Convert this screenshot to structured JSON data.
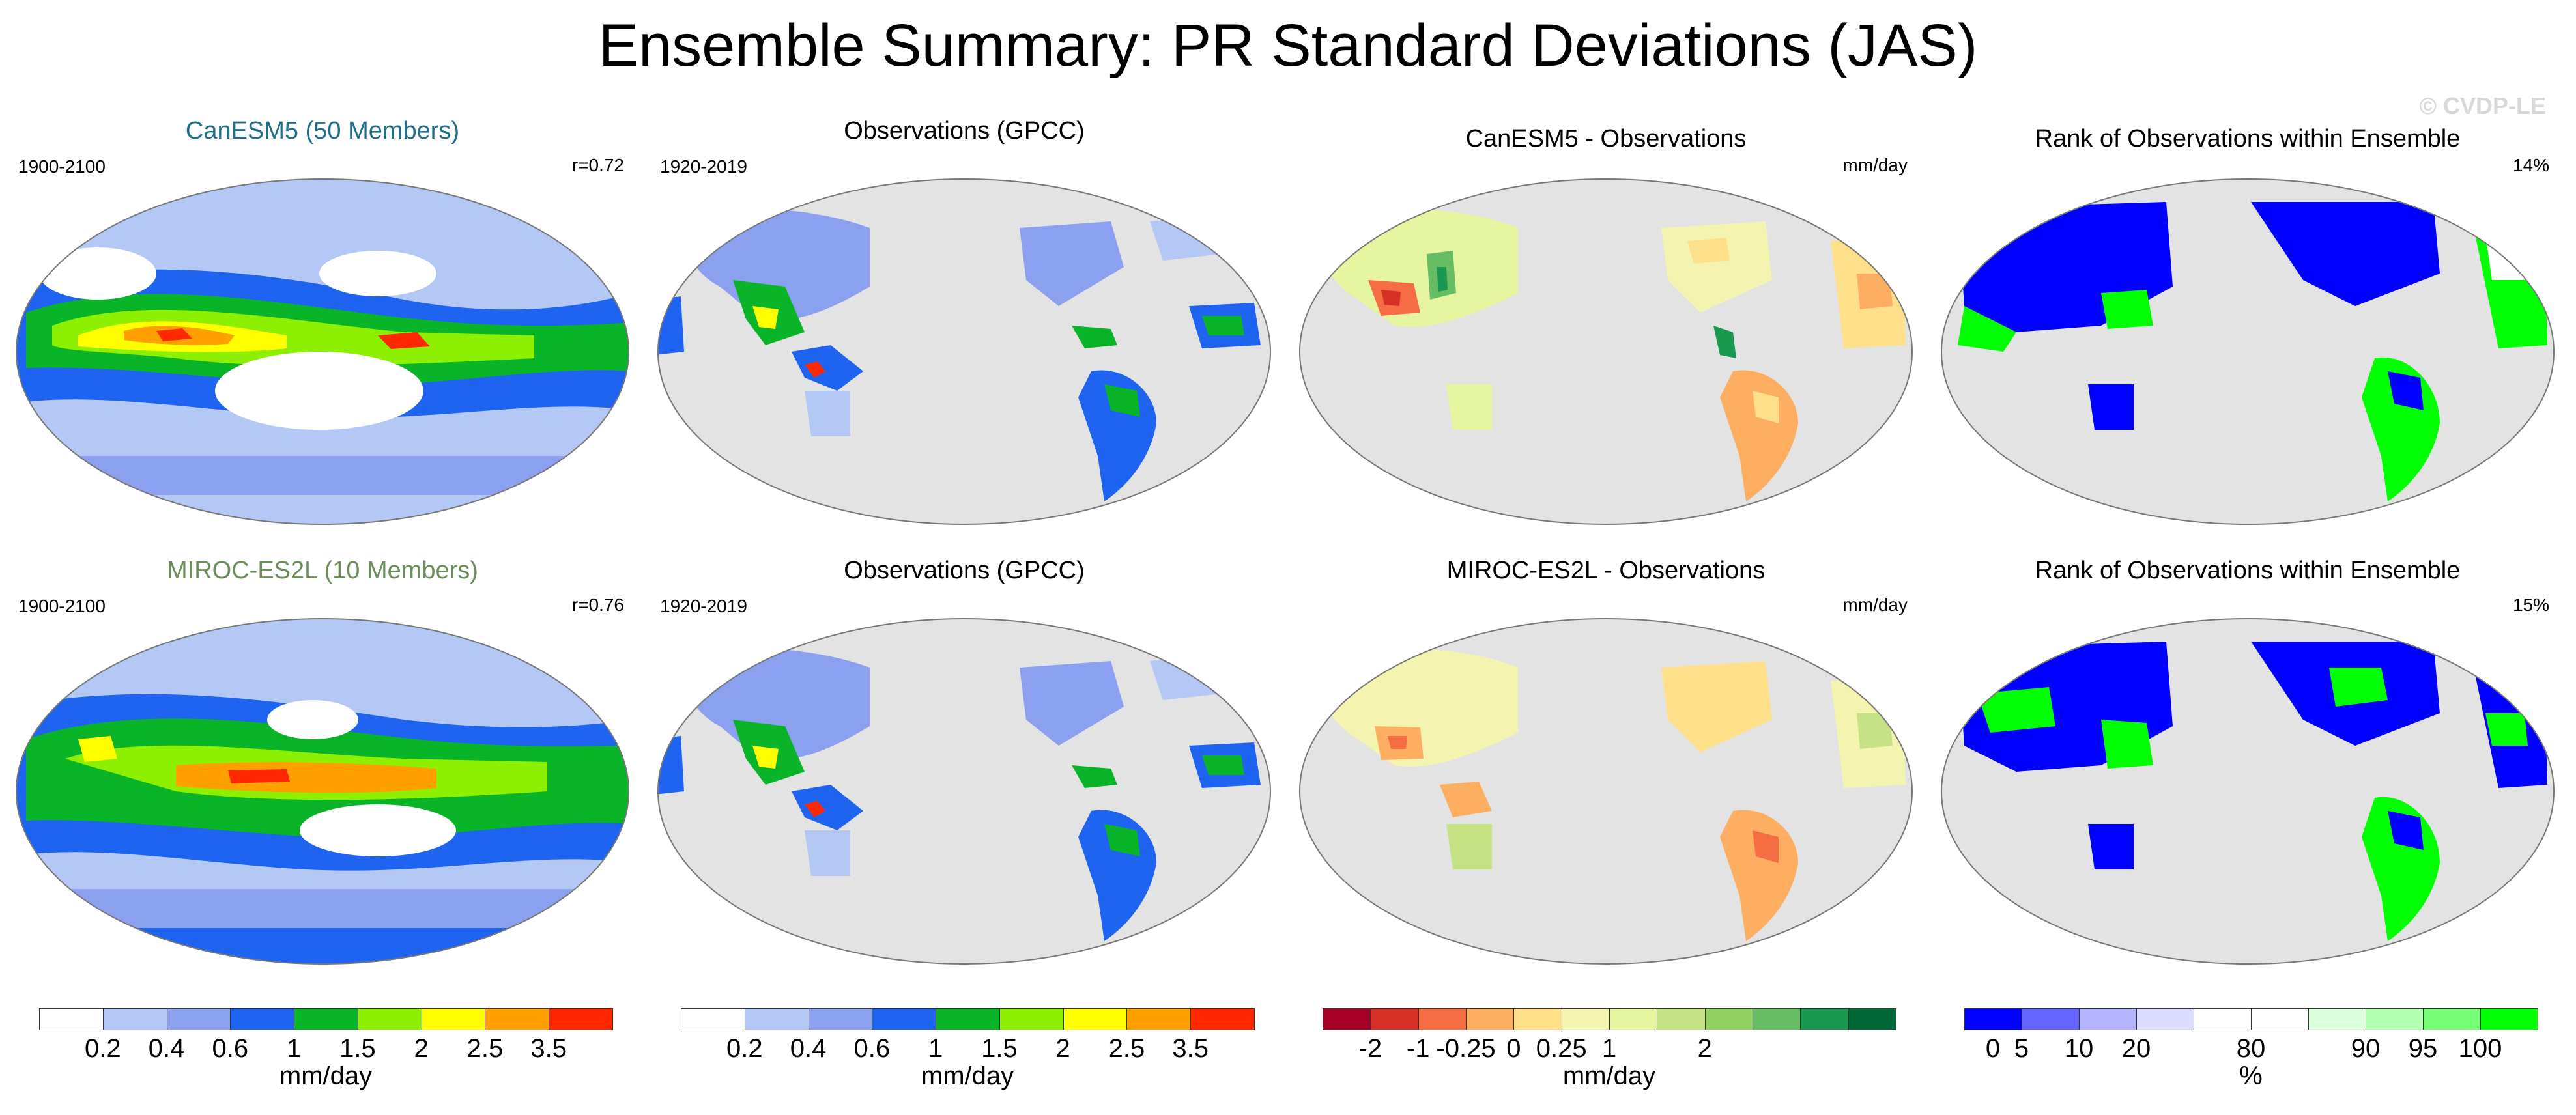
{
  "title": "Ensemble Summary: PR Standard Deviations (JAS)",
  "watermark": "© CVDP-LE",
  "panels": [
    {
      "title": "CanESM5 (50 Members)",
      "title_color": "#1f6f8b",
      "left_label": "1900-2100",
      "right_label": "r=0.72",
      "kind": "model"
    },
    {
      "title": "Observations (GPCC)",
      "title_color": "#000000",
      "left_label": "1920-2019",
      "right_label": "",
      "kind": "obs"
    },
    {
      "title": "CanESM5 - Observations",
      "title_color": "#000000",
      "left_label": "",
      "right_label": "mm/day",
      "kind": "diff"
    },
    {
      "title": "Rank of Observations within Ensemble",
      "title_color": "#000000",
      "left_label": "",
      "right_label": "14%",
      "kind": "rank"
    },
    {
      "title": "MIROC-ES2L (10 Members)",
      "title_color": "#6b8e5a",
      "left_label": "1900-2100",
      "right_label": "r=0.76",
      "kind": "model"
    },
    {
      "title": "Observations (GPCC)",
      "title_color": "#000000",
      "left_label": "1920-2019",
      "right_label": "",
      "kind": "obs"
    },
    {
      "title": "MIROC-ES2L - Observations",
      "title_color": "#000000",
      "left_label": "",
      "right_label": "mm/day",
      "kind": "diff"
    },
    {
      "title": "Rank of Observations within Ensemble",
      "title_color": "#000000",
      "left_label": "",
      "right_label": "15%",
      "kind": "rank"
    }
  ],
  "colorbars": [
    {
      "unit": "mm/day",
      "colors": [
        "#ffffff",
        "#b4c8f5",
        "#8ca0f0",
        "#1e64f0",
        "#0ab428",
        "#8cf000",
        "#ffff00",
        "#ffa000",
        "#ff2800"
      ],
      "labels": [
        "0.2",
        "0.4",
        "0.6",
        "1",
        "1.5",
        "2",
        "2.5",
        "3.5"
      ]
    },
    {
      "unit": "mm/day",
      "colors": [
        "#ffffff",
        "#b4c8f5",
        "#8ca0f0",
        "#1e64f0",
        "#0ab428",
        "#8cf000",
        "#ffff00",
        "#ffa000",
        "#ff2800"
      ],
      "labels": [
        "0.2",
        "0.4",
        "0.6",
        "1",
        "1.5",
        "2",
        "2.5",
        "3.5"
      ]
    },
    {
      "unit": "mm/day",
      "colors": [
        "#a50026",
        "#d73027",
        "#f46d43",
        "#fdae61",
        "#fee08b",
        "#f4f3b0",
        "#e6f5a0",
        "#c5e384",
        "#91cf60",
        "#66bd63",
        "#1a9850",
        "#006837"
      ],
      "labels": [
        "-2",
        "-1",
        "-0.25",
        "0",
        "0.25",
        "1",
        "2"
      ],
      "label_slots": [
        1,
        2,
        3,
        4,
        5,
        6,
        8
      ]
    },
    {
      "unit": "%",
      "colors": [
        "#0000ff",
        "#6464ff",
        "#b4b4ff",
        "#dcdcff",
        "#ffffff",
        "#ffffff",
        "#dcffdc",
        "#b4ffb4",
        "#78ff78",
        "#00ff00"
      ],
      "labels": [
        "0",
        "5",
        "10",
        "20",
        "80",
        "90",
        "95",
        "100"
      ],
      "label_slots": [
        0.5,
        1,
        2,
        3,
        5,
        7,
        8,
        9
      ]
    }
  ],
  "colors": {
    "land": "#ebebeb",
    "ocean": "#d9d9d9",
    "coast": "#555555"
  }
}
